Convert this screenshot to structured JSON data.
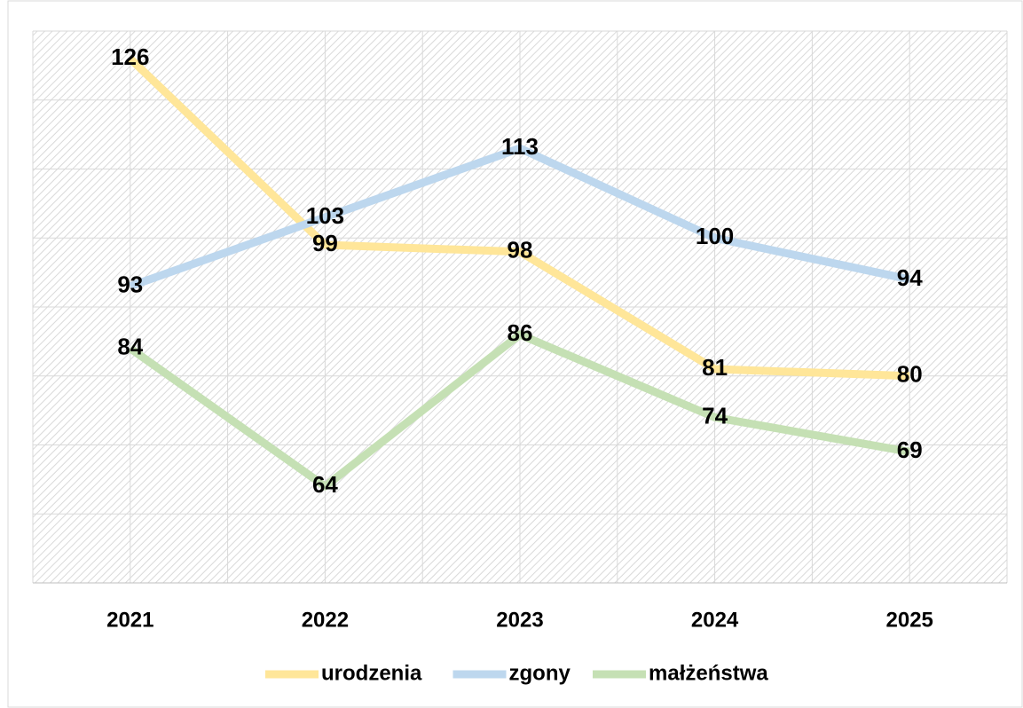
{
  "chart_data": {
    "type": "line",
    "categories": [
      "2021",
      "2022",
      "2023",
      "2024",
      "2025"
    ],
    "series": [
      {
        "name": "urodzenia",
        "color": "#ffe699",
        "values": [
          126,
          99,
          98,
          81,
          80
        ]
      },
      {
        "name": "zgony",
        "color": "#bdd7ee",
        "values": [
          93,
          103,
          113,
          100,
          94
        ]
      },
      {
        "name": "małżeństwa",
        "color": "#c5e0b4",
        "values": [
          84,
          64,
          86,
          74,
          69
        ]
      }
    ],
    "ylim": [
      50,
      130
    ],
    "yticks": [
      50,
      60,
      70,
      80,
      90,
      100,
      110,
      120,
      130
    ],
    "grid": true
  }
}
